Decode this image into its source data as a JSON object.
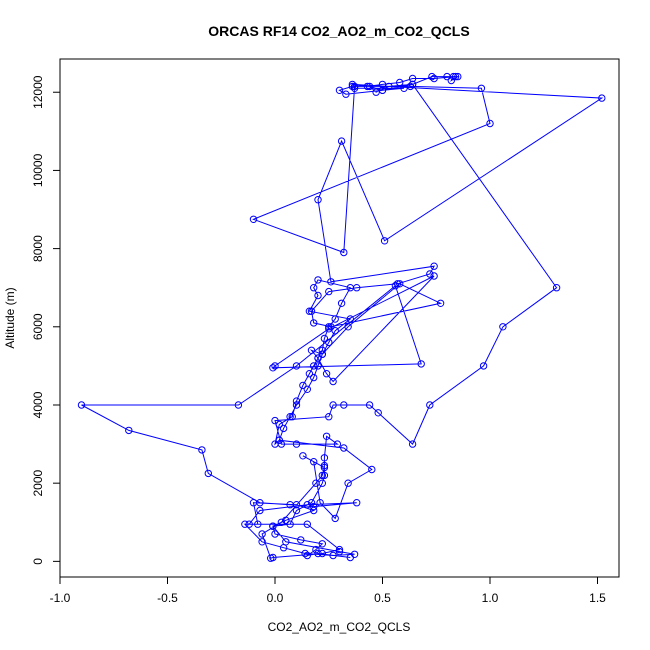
{
  "chart_data": {
    "type": "scatter",
    "title": "ORCAS RF14 CO2_AO2_m_CO2_QCLS",
    "xlabel": "CO2_AO2_m_CO2_QCLS",
    "ylabel": "Altitude (m)",
    "xlim": [
      -1.0,
      1.6
    ],
    "ylim": [
      -400,
      12850
    ],
    "xticks": [
      -1.0,
      -0.5,
      0.0,
      0.5,
      1.0,
      1.5
    ],
    "xtick_labels": [
      "-1.0",
      "-0.5",
      "0.0",
      "0.5",
      "1.0",
      "1.5"
    ],
    "yticks": [
      0,
      2000,
      4000,
      6000,
      8000,
      10000,
      12000
    ],
    "ytick_labels": [
      "0",
      "2000",
      "4000",
      "6000",
      "8000",
      "10000",
      "12000"
    ],
    "grid": false,
    "color": "#0000ff",
    "series": [
      {
        "mode": "lines+markers",
        "x": [
          0.35,
          0.2,
          0.15,
          0.19,
          0.22,
          0.12,
          0.0,
          -0.01,
          0.05,
          0.18,
          0.1,
          -0.1,
          -0.08,
          -0.14,
          -0.06,
          0.04,
          0.14,
          0.27,
          0.37,
          0.3,
          0.05,
          -0.01,
          0.07,
          0.1,
          0.17,
          0.22,
          0.23,
          0.23,
          0.23,
          0.24,
          0.29,
          0.1,
          0.03,
          0.0,
          0.25,
          0.27,
          0.32,
          0.44,
          0.48,
          0.64,
          0.72,
          0.97,
          1.06,
          1.31,
          0.64,
          0.5,
          0.33,
          0.3,
          0.36,
          0.63,
          0.96,
          1.0,
          -0.1,
          0.32,
          0.37,
          0.37,
          0.6,
          0.5,
          0.44,
          0.47,
          0.53,
          0.64,
          0.73,
          0.8,
          0.85,
          0.82,
          0.83,
          0.84,
          0.74,
          0.64,
          0.58,
          0.5,
          0.43,
          0.36,
          1.52,
          0.51,
          0.31,
          0.2,
          0.26,
          0.74,
          0.72,
          0.57,
          0.38,
          0.25,
          0.17,
          0.18,
          0.26,
          0.77,
          0.58,
          0.34,
          0.22,
          0.17,
          0.2,
          0.24,
          0.27,
          0.74,
          0.25,
          0.0,
          -0.01,
          0.68,
          0.56,
          0.1,
          -0.17,
          -0.9,
          -0.68,
          -0.34,
          -0.31,
          -0.07,
          0.07,
          0.18,
          0.38,
          0.15,
          -0.07,
          -0.12,
          0.15,
          0.3,
          0.22,
          -0.01,
          -0.02,
          -0.06,
          0.03,
          0.19,
          0.22,
          0.23,
          0.13,
          0.18,
          0.21,
          0.28,
          0.34,
          0.45,
          0.32,
          0.02,
          0.0,
          0.02,
          0.08,
          0.1,
          0.13,
          0.16,
          0.18,
          0.2,
          0.22,
          0.23,
          0.25,
          0.28,
          0.31,
          0.35,
          0.2,
          0.18,
          0.2,
          0.16,
          0.35,
          0.28,
          0.25,
          0.22,
          0.2,
          0.18,
          0.15,
          0.1,
          0.07,
          0.04,
          0.02
        ],
        "y": [
          100,
          200,
          150,
          300,
          450,
          550,
          700,
          900,
          1050,
          1300,
          1450,
          1500,
          950,
          950,
          500,
          350,
          200,
          150,
          180,
          250,
          500,
          900,
          950,
          1300,
          1500,
          2000,
          2200,
          2450,
          2650,
          3200,
          3000,
          3000,
          3000,
          3600,
          3700,
          4000,
          4000,
          4000,
          3800,
          3000,
          4000,
          5000,
          6000,
          7000,
          12200,
          12050,
          11950,
          12050,
          12150,
          12150,
          12100,
          11200,
          8750,
          7900,
          12150,
          12100,
          12100,
          12050,
          12150,
          12000,
          12150,
          12200,
          12400,
          12400,
          12400,
          12300,
          12400,
          12400,
          12350,
          12350,
          12250,
          12200,
          12150,
          12200,
          11850,
          8200,
          10750,
          9250,
          7150,
          7550,
          7350,
          7100,
          7000,
          6900,
          6400,
          6100,
          6000,
          6600,
          7100,
          6000,
          5300,
          5400,
          5200,
          4800,
          4600,
          7300,
          5950,
          5000,
          4950,
          5050,
          7050,
          5000,
          4000,
          4000,
          3350,
          2850,
          2250,
          1500,
          1450,
          1400,
          1500,
          1450,
          1300,
          950,
          950,
          300,
          200,
          100,
          80,
          700,
          1000,
          2000,
          2200,
          2400,
          2700,
          2550,
          1500,
          1100,
          2000,
          2350,
          2900,
          3100,
          3000,
          3500,
          3700,
          4100,
          4500,
          4800,
          5000,
          5200,
          5400,
          5700,
          6000,
          6200,
          6600,
          7000,
          7200,
          7000,
          6800,
          6400,
          6200,
          5900,
          5600,
          5300,
          5000,
          4700,
          4400,
          4000,
          3700,
          3400,
          3100
        ]
      }
    ]
  }
}
